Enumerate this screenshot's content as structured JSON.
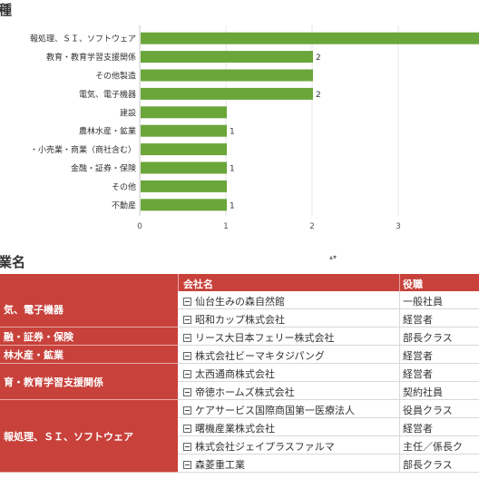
{
  "chart_section": {
    "title": "種"
  },
  "table_section": {
    "title": "業名",
    "scroll_glyph": "▴▾"
  },
  "chart_data": {
    "type": "bar",
    "orientation": "horizontal",
    "title": "種",
    "categories": [
      "報処理、ＳＩ、ソフトウェア",
      "教育・教育学習支援関係",
      "その他製造",
      "電気、電子機器",
      "建設",
      "農林水産・鉱業",
      "・小売業・商業（商社含む）",
      "金融・証券・保険",
      "その他",
      "不動産"
    ],
    "values": [
      4,
      2,
      2,
      2,
      1,
      1,
      1,
      1,
      1,
      1
    ],
    "data_labels": [
      "",
      "2",
      "",
      "2",
      "",
      "1",
      "",
      "1",
      "",
      "1"
    ],
    "xlim": [
      0,
      4
    ],
    "ticks": [
      "0",
      "1",
      "2",
      "3"
    ],
    "bar_color": "#6aa63a",
    "grid": true
  },
  "table": {
    "headers": {
      "company": "会社名",
      "role": "役職"
    },
    "groups": [
      {
        "industry": "気、電子機器",
        "rows": [
          {
            "company": "仙台生みの森自然館",
            "role": "一般社員"
          },
          {
            "company": "昭和カップ株式会社",
            "role": "経営者"
          }
        ]
      },
      {
        "industry": "融・証券・保険",
        "rows": [
          {
            "company": "リース大日本フェリー株式会社",
            "role": "部長クラス"
          }
        ]
      },
      {
        "industry": "林水産・鉱業",
        "rows": [
          {
            "company": "株式会社ビーマキタジパング",
            "role": "経営者"
          }
        ]
      },
      {
        "industry": "育・教育学習支援関係",
        "rows": [
          {
            "company": "太西通商株式会社",
            "role": "経営者"
          },
          {
            "company": "帝徳ホームズ株式会社",
            "role": "契約社員"
          }
        ]
      },
      {
        "industry": "報処理、ＳＩ、ソフトウェア",
        "rows": [
          {
            "company": "ケアサービス国際商国第一医療法人",
            "role": "役員クラス"
          },
          {
            "company": "曙機産業株式会社",
            "role": "経営者"
          },
          {
            "company": "株式会社ジェイプラスファルマ",
            "role": "主任／係長ク"
          },
          {
            "company": "森菱重工業",
            "role": "部長クラス"
          }
        ]
      }
    ]
  }
}
